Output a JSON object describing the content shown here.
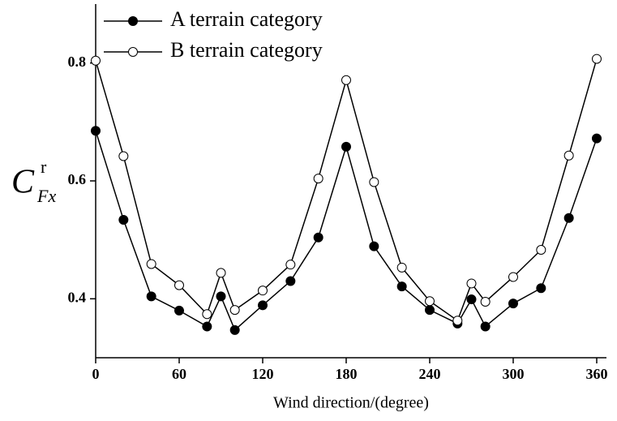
{
  "chart_data": {
    "type": "line",
    "x_label": "Wind direction/(degree)",
    "y_label": {
      "main": "C",
      "sub": "Fx",
      "sup": "r"
    },
    "x": [
      0,
      20,
      40,
      60,
      80,
      90,
      100,
      120,
      140,
      160,
      180,
      200,
      220,
      240,
      260,
      270,
      280,
      300,
      320,
      340,
      360
    ],
    "series": [
      {
        "name": "A terrain category",
        "color": "#000000",
        "marker": "filled",
        "values": [
          0.685,
          0.534,
          0.404,
          0.38,
          0.353,
          0.404,
          0.347,
          0.389,
          0.43,
          0.504,
          0.658,
          0.489,
          0.421,
          0.381,
          0.358,
          0.399,
          0.353,
          0.392,
          0.418,
          0.537,
          0.672
        ]
      },
      {
        "name": "B terrain category",
        "color": "#000000",
        "marker": "open",
        "values": [
          0.804,
          0.642,
          0.459,
          0.423,
          0.374,
          0.444,
          0.381,
          0.414,
          0.458,
          0.604,
          0.771,
          0.598,
          0.453,
          0.396,
          0.363,
          0.426,
          0.395,
          0.437,
          0.483,
          0.643,
          0.807
        ]
      }
    ],
    "xlim": [
      0,
      367
    ],
    "xticks": [
      0,
      60,
      120,
      180,
      240,
      300,
      360
    ],
    "ylim": [
      0.3,
      0.9
    ],
    "yticks": [
      0.4,
      0.6,
      0.8
    ],
    "legend": "top-left",
    "grid": false
  }
}
